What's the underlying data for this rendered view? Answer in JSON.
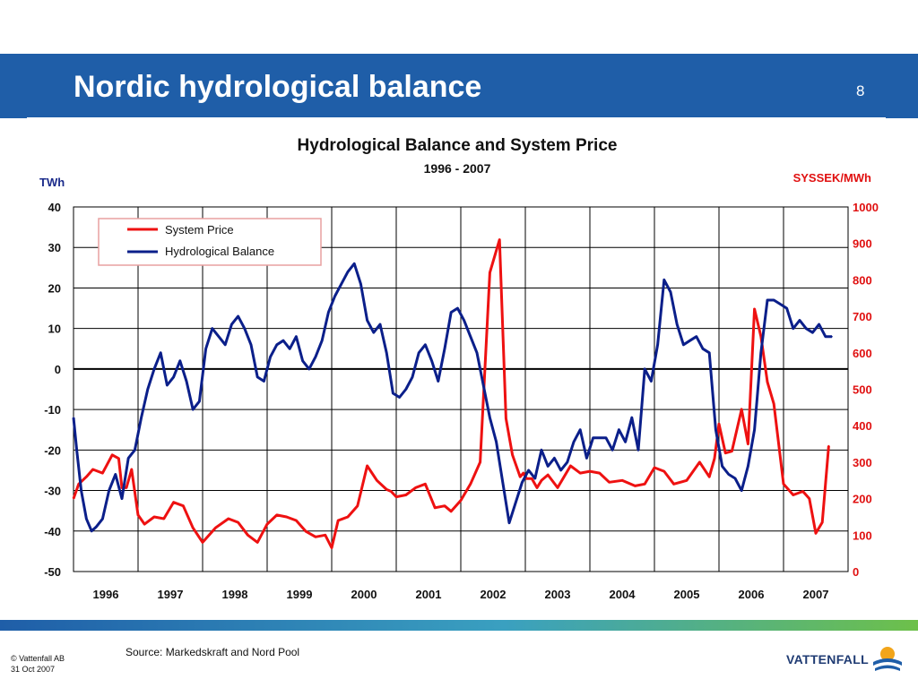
{
  "slide": {
    "title": "Nordic hydrological balance",
    "page_number": "8",
    "source": "Source: Markedskraft and Nord Pool",
    "copyright": "© Vattenfall AB",
    "date": "31 Oct 2007",
    "brand": "VATTENFALL"
  },
  "colors": {
    "header_band": "#1f5ea8",
    "system_price": "#ee1111",
    "hydrological_balance": "#0b1f8a",
    "right_axis_text": "#e01010"
  },
  "chart_data": {
    "type": "line",
    "title": "Hydrological Balance and System Price",
    "subtitle": "1996 - 2007",
    "ylabel_left": "TWh",
    "ylabel_right": "SYSSEK/MWh",
    "x_range": [
      1996.0,
      2008.0
    ],
    "ylim_left": [
      -50,
      40
    ],
    "ylim_right": [
      0,
      1000
    ],
    "yticks_left": [
      "40",
      "30",
      "20",
      "10",
      "0",
      "-10",
      "-20",
      "-30",
      "-40",
      "-50"
    ],
    "yticks_right": [
      "1000",
      "900",
      "800",
      "700",
      "600",
      "500",
      "400",
      "300",
      "200",
      "100",
      "0"
    ],
    "x_tick_labels": [
      "1996",
      "1997",
      "1998",
      "1999",
      "2000",
      "2001",
      "2002",
      "2003",
      "2004",
      "2005",
      "2006",
      "2007"
    ],
    "grid": true,
    "legend_position": "top-left",
    "series": [
      {
        "name": "System Price",
        "axis": "right",
        "color": "#ee1111",
        "x": [
          1996.0,
          1996.08,
          1996.2,
          1996.3,
          1996.45,
          1996.6,
          1996.7,
          1996.75,
          1996.82,
          1996.9,
          1997.0,
          1997.1,
          1997.25,
          1997.4,
          1997.55,
          1997.7,
          1997.85,
          1998.0,
          1998.2,
          1998.4,
          1998.55,
          1998.7,
          1998.85,
          1999.0,
          1999.15,
          1999.3,
          1999.45,
          1999.6,
          1999.75,
          1999.9,
          2000.0,
          2000.1,
          2000.25,
          2000.4,
          2000.55,
          2000.7,
          2000.85,
          2000.92,
          2001.0,
          2001.15,
          2001.3,
          2001.45,
          2001.6,
          2001.75,
          2001.85,
          2002.0,
          2002.15,
          2002.3,
          2002.45,
          2002.6,
          2002.7,
          2002.8,
          2002.92,
          2002.97,
          2003.02,
          2003.1,
          2003.18,
          2003.25,
          2003.35,
          2003.5,
          2003.7,
          2003.85,
          2004.0,
          2004.15,
          2004.3,
          2004.5,
          2004.7,
          2004.85,
          2005.0,
          2005.15,
          2005.3,
          2005.5,
          2005.7,
          2005.85,
          2005.93,
          2006.0,
          2006.1,
          2006.2,
          2006.35,
          2006.45,
          2006.55,
          2006.65,
          2006.75,
          2006.85,
          2007.0,
          2007.15,
          2007.3,
          2007.4,
          2007.5,
          2007.6,
          2007.7
        ],
        "values": [
          200,
          240,
          260,
          280,
          270,
          320,
          310,
          230,
          230,
          280,
          155,
          130,
          150,
          145,
          190,
          180,
          120,
          80,
          120,
          145,
          135,
          100,
          80,
          130,
          155,
          150,
          140,
          110,
          95,
          100,
          65,
          140,
          150,
          180,
          290,
          250,
          225,
          220,
          205,
          210,
          230,
          240,
          175,
          180,
          165,
          195,
          240,
          300,
          820,
          910,
          420,
          320,
          260,
          270,
          255,
          255,
          230,
          250,
          265,
          230,
          290,
          270,
          275,
          270,
          245,
          250,
          235,
          240,
          285,
          275,
          240,
          250,
          300,
          260,
          310,
          405,
          325,
          330,
          445,
          350,
          720,
          645,
          520,
          460,
          240,
          210,
          220,
          200,
          105,
          135,
          345
        ]
      },
      {
        "name": "Hydrological Balance",
        "axis": "left",
        "color": "#0b1f8a",
        "x": [
          1996.0,
          1996.05,
          1996.12,
          1996.2,
          1996.28,
          1996.35,
          1996.45,
          1996.55,
          1996.65,
          1996.75,
          1996.85,
          1996.95,
          1997.05,
          1997.15,
          1997.25,
          1997.35,
          1997.45,
          1997.55,
          1997.65,
          1997.75,
          1997.85,
          1997.95,
          1998.05,
          1998.15,
          1998.25,
          1998.35,
          1998.45,
          1998.55,
          1998.65,
          1998.75,
          1998.85,
          1998.95,
          1999.05,
          1999.15,
          1999.25,
          1999.35,
          1999.45,
          1999.55,
          1999.65,
          1999.75,
          1999.85,
          1999.95,
          2000.05,
          2000.15,
          2000.25,
          2000.35,
          2000.45,
          2000.55,
          2000.65,
          2000.75,
          2000.85,
          2000.95,
          2001.05,
          2001.15,
          2001.25,
          2001.35,
          2001.45,
          2001.55,
          2001.65,
          2001.75,
          2001.85,
          2001.95,
          2002.05,
          2002.15,
          2002.25,
          2002.35,
          2002.45,
          2002.55,
          2002.65,
          2002.75,
          2002.85,
          2002.95,
          2003.05,
          2003.15,
          2003.25,
          2003.35,
          2003.45,
          2003.55,
          2003.65,
          2003.75,
          2003.85,
          2003.95,
          2004.05,
          2004.15,
          2004.25,
          2004.35,
          2004.45,
          2004.55,
          2004.65,
          2004.75,
          2004.85,
          2004.95,
          2005.05,
          2005.15,
          2005.25,
          2005.35,
          2005.45,
          2005.55,
          2005.65,
          2005.75,
          2005.85,
          2005.95,
          2006.05,
          2006.15,
          2006.25,
          2006.35,
          2006.45,
          2006.55,
          2006.65,
          2006.75,
          2006.85,
          2006.95,
          2007.05,
          2007.15,
          2007.25,
          2007.35,
          2007.45,
          2007.55,
          2007.65,
          2007.75
        ],
        "values": [
          -12,
          -20,
          -30,
          -37,
          -40,
          -39,
          -37,
          -30,
          -26,
          -32,
          -22,
          -20,
          -12,
          -5,
          0,
          4,
          -4,
          -2,
          2,
          -3,
          -10,
          -8,
          5,
          10,
          8,
          6,
          11,
          13,
          10,
          6,
          -2,
          -3,
          3,
          6,
          7,
          5,
          8,
          2,
          0,
          3,
          7,
          14,
          18,
          21,
          24,
          26,
          21,
          12,
          9,
          11,
          4,
          -6,
          -7,
          -5,
          -2,
          4,
          6,
          2,
          -3,
          5,
          14,
          15,
          12,
          8,
          4,
          -4,
          -12,
          -18,
          -28,
          -38,
          -33,
          -28,
          -25,
          -27,
          -20,
          -24,
          -22,
          -25,
          -23,
          -18,
          -15,
          -22,
          -17,
          -17,
          -17,
          -20,
          -15,
          -18,
          -12,
          -20,
          0,
          -3,
          6,
          22,
          19,
          11,
          6,
          7,
          8,
          5,
          4,
          -15,
          -24,
          -26,
          -27,
          -30,
          -24,
          -15,
          4,
          17,
          17,
          16,
          15,
          10,
          12,
          10,
          9,
          11,
          8,
          8
        ]
      }
    ]
  }
}
